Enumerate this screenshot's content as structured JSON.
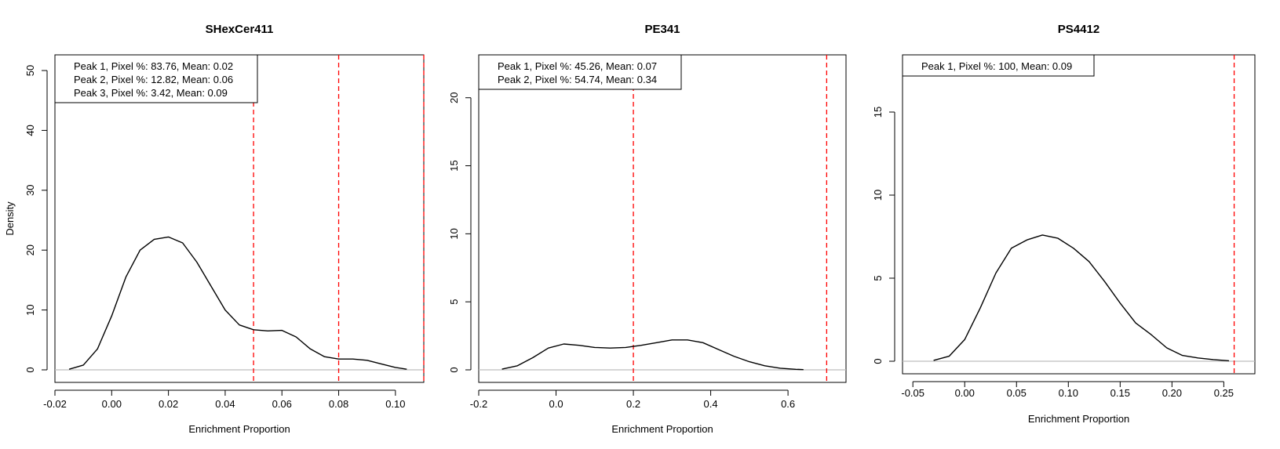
{
  "chart_data": [
    {
      "type": "line",
      "title": "SHexCer411",
      "xlabel": "Enrichment Proportion",
      "ylabel": "Density",
      "xlim": [
        -0.02,
        0.11
      ],
      "ylim": [
        0,
        50
      ],
      "xticks": [
        -0.02,
        0.0,
        0.02,
        0.04,
        0.06,
        0.08,
        0.1
      ],
      "xtick_labels": [
        "-0.02",
        "0.00",
        "0.02",
        "0.04",
        "0.06",
        "0.08",
        "0.10"
      ],
      "yticks": [
        0,
        10,
        20,
        30,
        40,
        50
      ],
      "ytick_labels": [
        "0",
        "10",
        "20",
        "30",
        "40",
        "50"
      ],
      "threshold_lines_x": [
        0.05,
        0.08,
        0.11
      ],
      "legend_position": "top-left",
      "legend": [
        "Peak 1, Pixel %: 83.76, Mean: 0.02",
        "Peak 2, Pixel %: 12.82, Mean: 0.06",
        "Peak 3, Pixel %: 3.42, Mean: 0.09"
      ],
      "grid": false,
      "series": [
        {
          "x": [
            -0.015,
            -0.01,
            -0.005,
            0.0,
            0.005,
            0.01,
            0.015,
            0.02,
            0.025,
            0.03,
            0.035,
            0.04,
            0.045,
            0.05,
            0.055,
            0.06,
            0.065,
            0.07,
            0.075,
            0.08,
            0.085,
            0.09,
            0.095,
            0.1,
            0.104
          ],
          "y": [
            0.1,
            0.8,
            3.5,
            9.0,
            15.5,
            20.0,
            21.8,
            22.2,
            21.2,
            18.0,
            14.0,
            10.0,
            7.5,
            6.7,
            6.5,
            6.6,
            5.5,
            3.5,
            2.2,
            1.8,
            1.8,
            1.6,
            1.0,
            0.4,
            0.1
          ]
        }
      ]
    },
    {
      "type": "line",
      "title": "PE341",
      "xlabel": "Enrichment Proportion",
      "ylabel": "",
      "xlim": [
        -0.2,
        0.75
      ],
      "ylim": [
        0,
        22
      ],
      "xticks": [
        -0.2,
        0.0,
        0.2,
        0.4,
        0.6
      ],
      "xtick_labels": [
        "-0.2",
        "0.0",
        "0.2",
        "0.4",
        "0.6"
      ],
      "yticks": [
        0,
        5,
        10,
        15,
        20
      ],
      "ytick_labels": [
        "0",
        "5",
        "10",
        "15",
        "20"
      ],
      "threshold_lines_x": [
        0.2,
        0.7
      ],
      "legend_position": "top-left",
      "legend": [
        "Peak 1, Pixel %: 45.26, Mean: 0.07",
        "Peak 2, Pixel %: 54.74, Mean: 0.34"
      ],
      "grid": false,
      "series": [
        {
          "x": [
            -0.14,
            -0.1,
            -0.06,
            -0.02,
            0.02,
            0.06,
            0.1,
            0.14,
            0.18,
            0.22,
            0.26,
            0.3,
            0.34,
            0.38,
            0.42,
            0.46,
            0.5,
            0.54,
            0.58,
            0.62,
            0.64
          ],
          "y": [
            0.05,
            0.3,
            0.9,
            1.6,
            1.9,
            1.8,
            1.65,
            1.6,
            1.65,
            1.8,
            2.0,
            2.2,
            2.2,
            2.0,
            1.5,
            1.0,
            0.6,
            0.3,
            0.12,
            0.04,
            0.02
          ]
        }
      ]
    },
    {
      "type": "line",
      "title": "PS4412",
      "xlabel": "Enrichment Proportion",
      "ylabel": "",
      "xlim": [
        -0.06,
        0.28
      ],
      "ylim": [
        0,
        17.5
      ],
      "xticks": [
        -0.05,
        0.0,
        0.05,
        0.1,
        0.15,
        0.2,
        0.25
      ],
      "xtick_labels": [
        "-0.05",
        "0.00",
        "0.05",
        "0.10",
        "0.15",
        "0.20",
        "0.25"
      ],
      "yticks": [
        0,
        5,
        10,
        15
      ],
      "ytick_labels": [
        "0",
        "5",
        "10",
        "15"
      ],
      "threshold_lines_x": [
        0.26
      ],
      "legend_position": "top-left",
      "legend": [
        "Peak 1, Pixel %: 100, Mean: 0.09"
      ],
      "grid": false,
      "series": [
        {
          "x": [
            -0.03,
            -0.015,
            0.0,
            0.015,
            0.03,
            0.045,
            0.06,
            0.075,
            0.09,
            0.105,
            0.12,
            0.135,
            0.15,
            0.165,
            0.18,
            0.195,
            0.21,
            0.225,
            0.24,
            0.255
          ],
          "y": [
            0.05,
            0.3,
            1.3,
            3.2,
            5.3,
            6.8,
            7.3,
            7.6,
            7.4,
            6.8,
            6.0,
            4.8,
            3.5,
            2.3,
            1.6,
            0.8,
            0.35,
            0.2,
            0.1,
            0.03
          ]
        }
      ]
    }
  ]
}
